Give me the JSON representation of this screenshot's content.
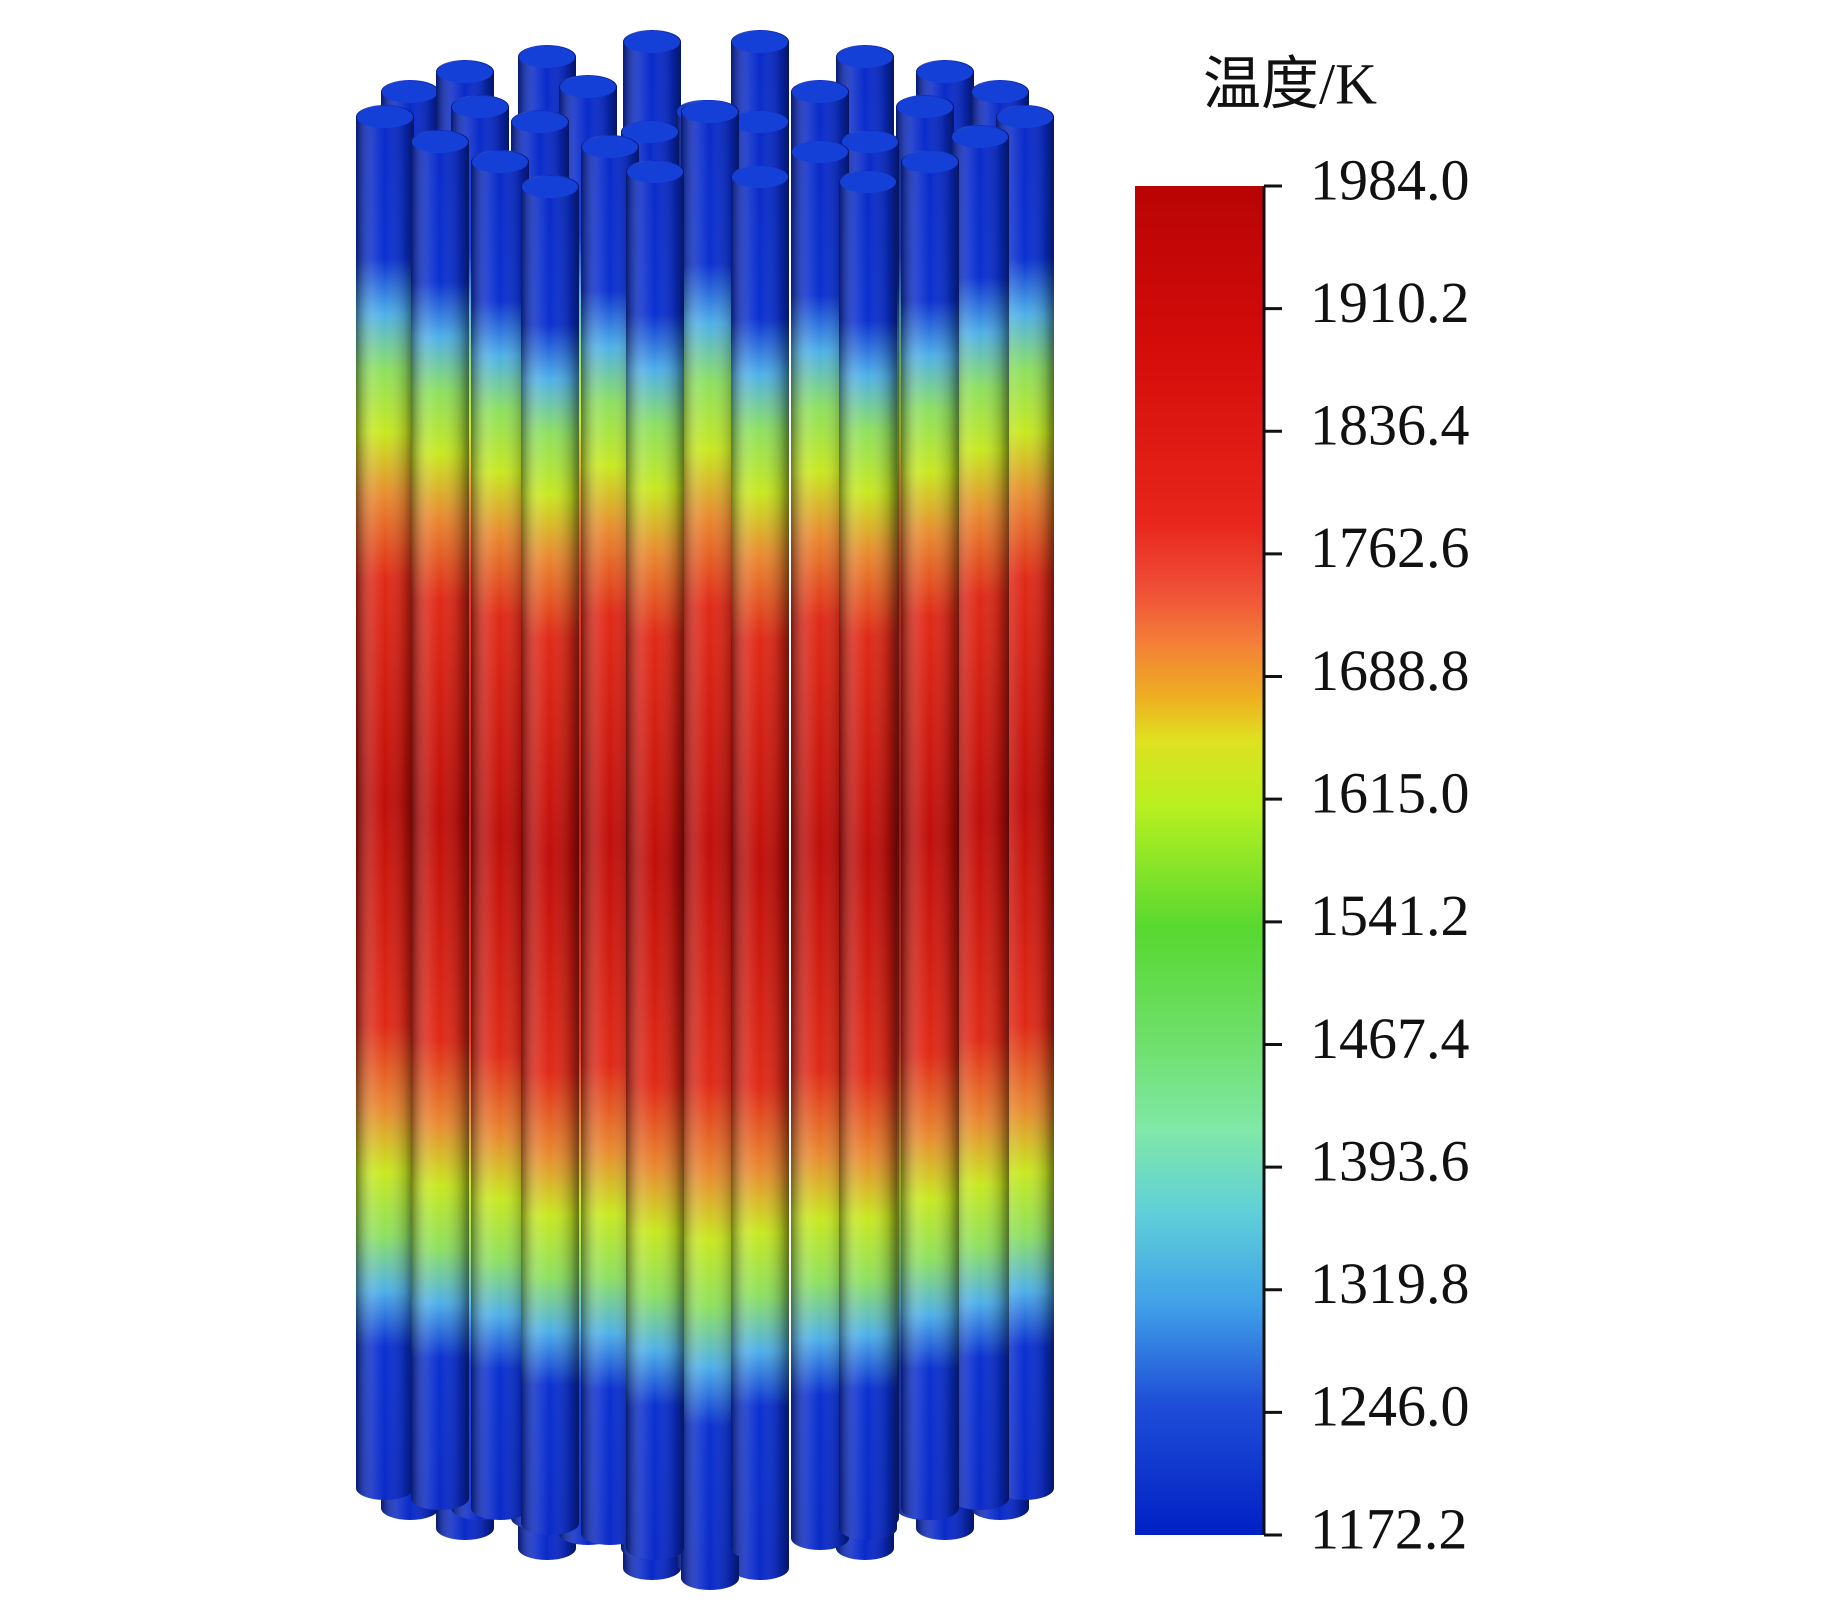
{
  "colorbar": {
    "title": "温度/K",
    "ticks": [
      "1984.0",
      "1910.2",
      "1836.4",
      "1762.6",
      "1688.8",
      "1615.0",
      "1541.2",
      "1467.4",
      "1393.6",
      "1319.8",
      "1246.0",
      "1172.2"
    ]
  }
}
